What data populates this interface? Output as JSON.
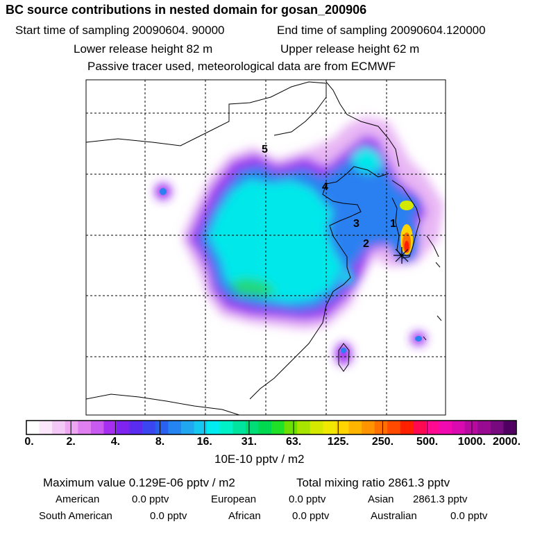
{
  "header": {
    "title": "BC  source contributions in nested domain for gosan_200906",
    "start_sampling": "Start time of sampling 20090604. 90000",
    "end_sampling": "End time of sampling 20090604.120000",
    "lower_release": "Lower release height   82 m",
    "upper_release": "Upper release height   62 m",
    "tracer_note": "Passive tracer used, meteorological data are from ECMWF"
  },
  "chart_data": {
    "type": "heatmap",
    "colorbar": {
      "tick_labels": [
        "0.",
        "2.",
        "4.",
        "8.",
        "16.",
        "31.",
        "63.",
        "125.",
        "250.",
        "500.",
        "1000.",
        "2000."
      ],
      "unit_label": "10E-10 pptv / m2",
      "colors": [
        "#ffffff",
        "#fbe6fb",
        "#f4c8f6",
        "#eca6f2",
        "#e07ff0",
        "#c95af0",
        "#a52ef0",
        "#7f24f0",
        "#5a2cf0",
        "#3c46f0",
        "#2a60f0",
        "#2484f0",
        "#1fa8f0",
        "#14c8f2",
        "#00ecf0",
        "#00f0c8",
        "#00e4a0",
        "#00dc78",
        "#00d850",
        "#20e028",
        "#6ce000",
        "#a8e400",
        "#d4e800",
        "#f0e800",
        "#ffd400",
        "#ffb400",
        "#ff9400",
        "#ff7000",
        "#ff4a00",
        "#ff2000",
        "#ff0a50",
        "#ff0a90",
        "#f00ab0",
        "#d80ab0",
        "#b80aa0",
        "#980a90",
        "#780a80",
        "#500060"
      ]
    },
    "region_labels": [
      "1",
      "2",
      "3",
      "4",
      "5"
    ],
    "receptor_marker": "gosan-star"
  },
  "stats": {
    "max_value": "Maximum value  0.129E-06 pptv / m2",
    "total_mixing": "Total mixing ratio      2861.3 pptv",
    "american_label": "American",
    "american_value": "0.0 pptv",
    "european_label": "European",
    "european_value": "0.0 pptv",
    "asian_label": "Asian",
    "asian_value": "2861.3 pptv",
    "south_american_label": "South American",
    "south_american_value": "0.0 pptv",
    "african_label": "African",
    "african_value": "0.0 pptv",
    "australian_label": "Australian",
    "australian_value": "0.0 pptv"
  }
}
